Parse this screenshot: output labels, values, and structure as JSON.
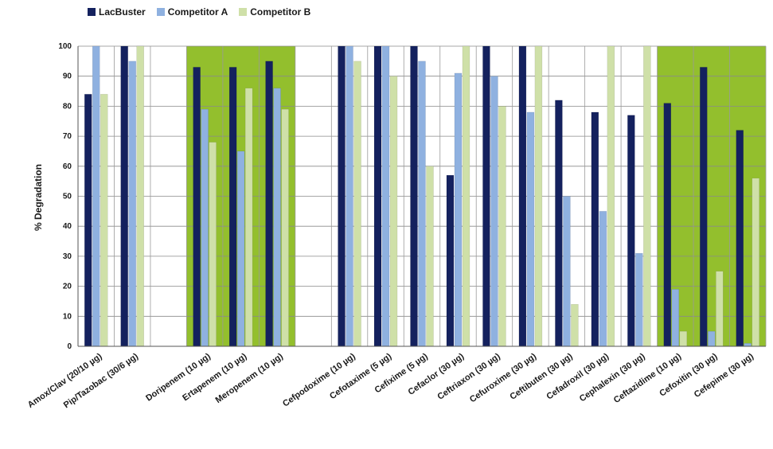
{
  "colors": {
    "lacbuster": "#14215e",
    "competitor_a": "#8fb1e0",
    "competitor_b": "#cfe0a8",
    "highlight": "#93bf2d",
    "axis": "#555555"
  },
  "chart_data": {
    "type": "bar",
    "title": "",
    "xlabel": "",
    "ylabel": "% Degradation",
    "ylim": [
      0,
      100
    ],
    "yticks": [
      0,
      10,
      20,
      30,
      40,
      50,
      60,
      70,
      80,
      90,
      100
    ],
    "grid": true,
    "legend_position": "top-left",
    "categories": [
      "Amox/Clav (20/10 µg)",
      "Pip/Tazobac (30/6 µg)",
      "",
      "Doripenem (10 µg)",
      "Ertapenem (10 µg)",
      "Meropenem (10 µg)",
      "",
      "Cefpodoxime (10 µg)",
      "Cefotaxime (5 µg)",
      "Cefixime (5 µg)",
      "Cefaclor (30 µg)",
      "Ceftriaxon (30 µg)",
      "Cefuroxime (30 µg)",
      "Ceftibuten (30 µg)",
      "Cefadroxil (30 µg)",
      "Cephalexin (30 µg)",
      "Ceftazidime (10 µg)",
      "Cefoxitin (30 µg)",
      "Cefepime (30 µg)"
    ],
    "highlight_ranges": [
      [
        3,
        5
      ],
      [
        16,
        18
      ]
    ],
    "series": [
      {
        "name": "LacBuster",
        "values": [
          84,
          100,
          null,
          93,
          93,
          95,
          null,
          100,
          100,
          100,
          57,
          100,
          100,
          82,
          78,
          77,
          81,
          93,
          72
        ]
      },
      {
        "name": "Competitor A",
        "values": [
          100,
          95,
          null,
          79,
          65,
          86,
          null,
          100,
          100,
          95,
          91,
          90,
          78,
          50,
          45,
          31,
          19,
          5,
          1
        ]
      },
      {
        "name": "Competitor B",
        "values": [
          84,
          100,
          null,
          68,
          86,
          79,
          null,
          95,
          90,
          60,
          100,
          80,
          100,
          14,
          100,
          100,
          5,
          25,
          56
        ]
      }
    ]
  }
}
